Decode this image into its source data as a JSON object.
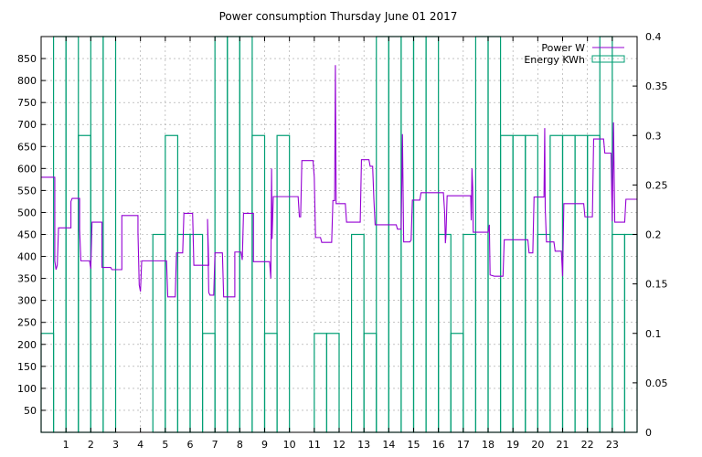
{
  "chart_data": {
    "type": "bar",
    "title": "Power consumption Thursday June 01 2017",
    "xlabel": "",
    "ylabel_left": "",
    "ylabel_right": "",
    "x_range": [
      0,
      24
    ],
    "y_left_range": [
      0,
      900
    ],
    "y_right_range": [
      0,
      0.4
    ],
    "x_ticks": [
      1,
      2,
      3,
      4,
      5,
      6,
      7,
      8,
      9,
      10,
      11,
      12,
      13,
      14,
      15,
      16,
      17,
      18,
      19,
      20,
      21,
      22,
      23
    ],
    "y_left_ticks": [
      50,
      100,
      150,
      200,
      250,
      300,
      350,
      400,
      450,
      500,
      550,
      600,
      650,
      700,
      750,
      800,
      850
    ],
    "y_right_ticks": [
      "0",
      "0.05",
      "0.1",
      "0.15",
      "0.2",
      "0.25",
      "0.3",
      "0.35",
      "0.4"
    ],
    "grid": true,
    "legend_position": "top-right",
    "series": [
      {
        "name": "Power W",
        "type": "line",
        "axis": "left",
        "color": "#9400d3",
        "points": [
          [
            0.0,
            580
          ],
          [
            0.55,
            580
          ],
          [
            0.55,
            390
          ],
          [
            0.6,
            370
          ],
          [
            0.65,
            380
          ],
          [
            0.7,
            465
          ],
          [
            1.2,
            465
          ],
          [
            1.2,
            525
          ],
          [
            1.25,
            532
          ],
          [
            1.55,
            532
          ],
          [
            1.55,
            460
          ],
          [
            1.6,
            390
          ],
          [
            1.95,
            390
          ],
          [
            2.0,
            372
          ],
          [
            2.05,
            478
          ],
          [
            2.45,
            478
          ],
          [
            2.45,
            375
          ],
          [
            2.8,
            375
          ],
          [
            2.85,
            370
          ],
          [
            3.25,
            370
          ],
          [
            3.25,
            493
          ],
          [
            3.9,
            493
          ],
          [
            3.9,
            455
          ],
          [
            3.95,
            335
          ],
          [
            4.0,
            320
          ],
          [
            4.05,
            390
          ],
          [
            5.05,
            390
          ],
          [
            5.1,
            308
          ],
          [
            5.4,
            308
          ],
          [
            5.45,
            408
          ],
          [
            5.7,
            408
          ],
          [
            5.75,
            498
          ],
          [
            6.1,
            498
          ],
          [
            6.15,
            380
          ],
          [
            6.75,
            380
          ],
          [
            6.7,
            485
          ],
          [
            6.75,
            318
          ],
          [
            6.8,
            312
          ],
          [
            6.95,
            312
          ],
          [
            7.0,
            408
          ],
          [
            7.3,
            408
          ],
          [
            7.35,
            308
          ],
          [
            7.8,
            308
          ],
          [
            7.8,
            410
          ],
          [
            8.05,
            410
          ],
          [
            8.1,
            392
          ],
          [
            8.15,
            498
          ],
          [
            8.55,
            498
          ],
          [
            8.55,
            388
          ],
          [
            9.2,
            388
          ],
          [
            9.25,
            350
          ],
          [
            9.28,
            600
          ],
          [
            9.3,
            440
          ],
          [
            9.35,
            536
          ],
          [
            10.35,
            536
          ],
          [
            10.4,
            490
          ],
          [
            10.45,
            490
          ],
          [
            10.5,
            618
          ],
          [
            10.95,
            618
          ],
          [
            11.0,
            580
          ],
          [
            11.05,
            443
          ],
          [
            11.25,
            443
          ],
          [
            11.3,
            432
          ],
          [
            11.7,
            432
          ],
          [
            11.75,
            527
          ],
          [
            11.82,
            527
          ],
          [
            11.85,
            835
          ],
          [
            11.88,
            520
          ],
          [
            12.25,
            520
          ],
          [
            12.3,
            478
          ],
          [
            12.85,
            478
          ],
          [
            12.9,
            620
          ],
          [
            13.2,
            620
          ],
          [
            13.25,
            605
          ],
          [
            13.35,
            605
          ],
          [
            13.4,
            530
          ],
          [
            13.45,
            472
          ],
          [
            14.3,
            472
          ],
          [
            14.35,
            462
          ],
          [
            14.5,
            462
          ],
          [
            14.55,
            678
          ],
          [
            14.6,
            433
          ],
          [
            14.85,
            433
          ],
          [
            14.9,
            437
          ],
          [
            14.95,
            528
          ],
          [
            15.25,
            528
          ],
          [
            15.3,
            545
          ],
          [
            16.2,
            545
          ],
          [
            16.25,
            500
          ],
          [
            16.28,
            430
          ],
          [
            16.3,
            445
          ],
          [
            16.35,
            538
          ],
          [
            17.3,
            538
          ],
          [
            17.32,
            482
          ],
          [
            17.35,
            600
          ],
          [
            17.38,
            555
          ],
          [
            17.4,
            455
          ],
          [
            17.85,
            455
          ],
          [
            18.0,
            455
          ],
          [
            18.05,
            472
          ],
          [
            18.08,
            358
          ],
          [
            18.25,
            355
          ],
          [
            18.6,
            355
          ],
          [
            18.65,
            438
          ],
          [
            19.6,
            438
          ],
          [
            19.65,
            408
          ],
          [
            19.8,
            408
          ],
          [
            19.85,
            535
          ],
          [
            20.25,
            535
          ],
          [
            20.28,
            692
          ],
          [
            20.3,
            510
          ],
          [
            20.35,
            433
          ],
          [
            20.65,
            433
          ],
          [
            20.7,
            412
          ],
          [
            20.95,
            412
          ],
          [
            21.0,
            355
          ],
          [
            21.05,
            520
          ],
          [
            21.85,
            520
          ],
          [
            21.9,
            490
          ],
          [
            22.2,
            490
          ],
          [
            22.25,
            667
          ],
          [
            22.65,
            667
          ],
          [
            22.7,
            635
          ],
          [
            22.95,
            635
          ],
          [
            23.0,
            480
          ],
          [
            23.05,
            705
          ],
          [
            23.1,
            478
          ],
          [
            23.5,
            478
          ],
          [
            23.55,
            530
          ],
          [
            24.0,
            530
          ]
        ]
      },
      {
        "name": "Energy KWh",
        "type": "bar",
        "axis": "right",
        "color": "#009e73",
        "bar_width": 0.5,
        "values": [
          0.1,
          0.4,
          0.4,
          0.3,
          0.4,
          0.4,
          0.0,
          0.0,
          0.0,
          0.2,
          0.3,
          0.2,
          0.2,
          0.1,
          0.4,
          0.4,
          0.4,
          0.3,
          0.1,
          0.3,
          0.0,
          0.0,
          0.1,
          0.1,
          0.0,
          0.2,
          0.1,
          0.4,
          0.4,
          0.4,
          0.4,
          0.4,
          0.2,
          0.1,
          0.2,
          0.4,
          0.4,
          0.3,
          0.3,
          0.3,
          0.2,
          0.3,
          0.3,
          0.3,
          0.3,
          0.4,
          0.2,
          0.2
        ]
      }
    ]
  }
}
